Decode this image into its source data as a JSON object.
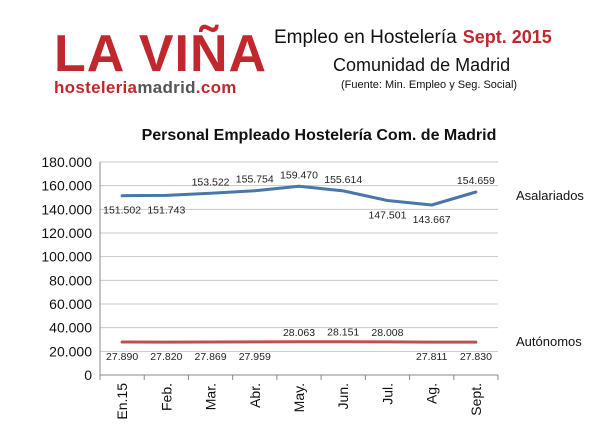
{
  "logo": {
    "main": "LA VIÑA",
    "sub_red": "hosteleria",
    "sub_dark": "madrid",
    "sub_red2": ".com"
  },
  "header": {
    "title": "Empleo en Hostelería",
    "date": "Sept. 2015",
    "subtitle": "Comunidad de Madrid",
    "source": "(Fuente: Min. Empleo y Seg. Social)"
  },
  "colors": {
    "brand": "#c0282e",
    "asalariados": "#4a77aa",
    "autonomos": "#c0504d",
    "grid": "#c8c8c8"
  },
  "chart_data": {
    "type": "line",
    "title": "Personal Empleado Hostelería Com. de Madrid",
    "categories": [
      "En.15",
      "Feb.",
      "Mar.",
      "Abr.",
      "May.",
      "Jun.",
      "Jul.",
      "Ag.",
      "Sept."
    ],
    "ylim": [
      0,
      180000
    ],
    "yticks": [
      "0",
      "20.000",
      "40.000",
      "60.000",
      "80.000",
      "100.000",
      "120.000",
      "140.000",
      "160.000",
      "180.000"
    ],
    "grid": true,
    "series": [
      {
        "name": "Asalariados",
        "values": [
          151502,
          151743,
          153522,
          155754,
          159470,
          155614,
          147501,
          143667,
          154659
        ],
        "labels": [
          "151.502",
          "151.743",
          "153.522",
          "155.754",
          "159.470",
          "155.614",
          "147.501",
          "143.667",
          "154.659"
        ]
      },
      {
        "name": "Autónomos",
        "values": [
          27890,
          27820,
          27869,
          27959,
          28063,
          28151,
          28008,
          27811,
          27830
        ],
        "labels": [
          "27.890",
          "27.820",
          "27.869",
          "27.959",
          "28.063",
          "28.151",
          "28.008",
          "27.811",
          "27.830"
        ]
      }
    ]
  }
}
